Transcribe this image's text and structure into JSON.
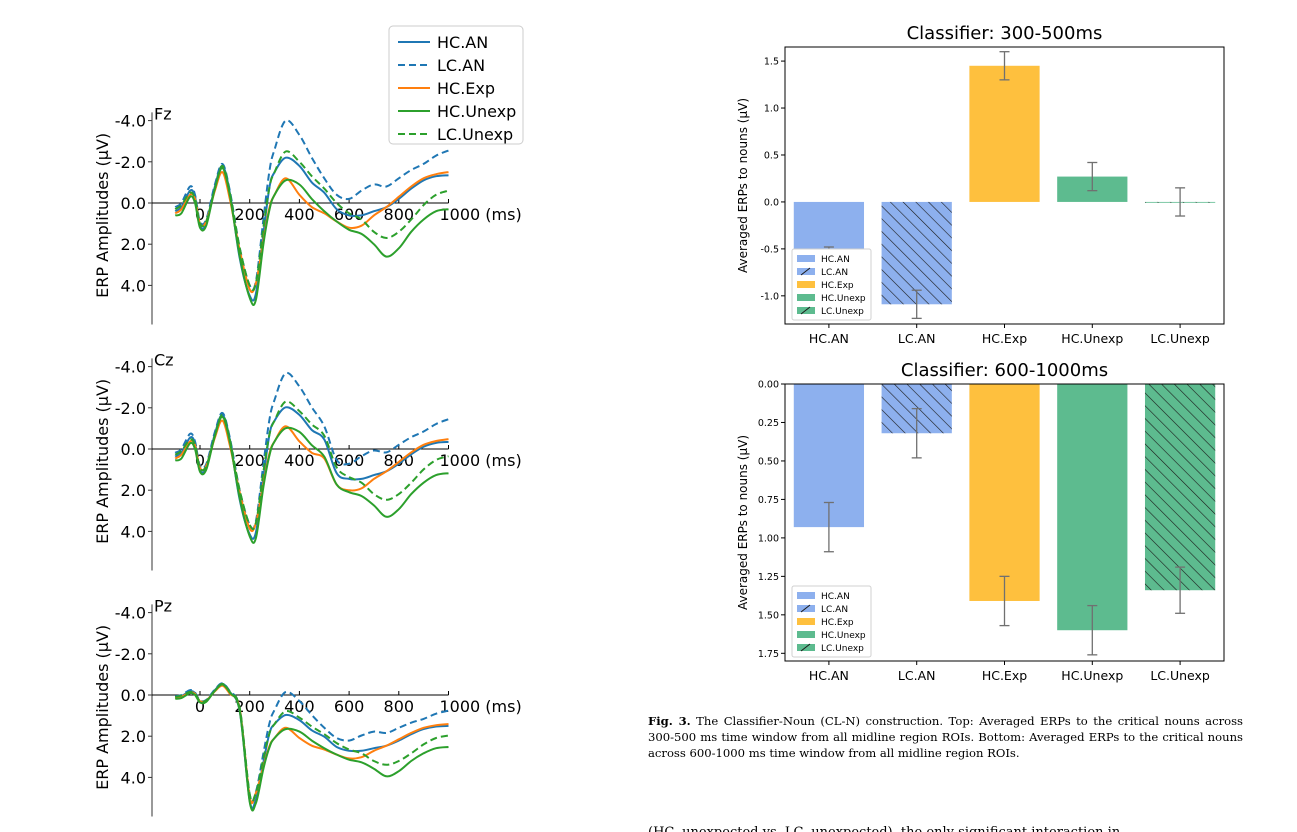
{
  "erp_panels": {
    "legend": [
      {
        "label": "HC.AN",
        "color": "#1f77b4",
        "dash": false
      },
      {
        "label": "LC.AN",
        "color": "#1f77b4",
        "dash": true
      },
      {
        "label": "HC.Exp",
        "color": "#ff7f0e",
        "dash": false
      },
      {
        "label": "HC.Unexp",
        "color": "#2ca02c",
        "dash": false
      },
      {
        "label": "LC.Unexp",
        "color": "#2ca02c",
        "dash": true
      }
    ],
    "ylabel": "ERP Amplitudes (μV)",
    "yticks": [
      "-4.0",
      "-2.0",
      "0.0",
      "2.0",
      "4.0"
    ],
    "xticks": [
      "0",
      "200",
      "400",
      "600",
      "800"
    ],
    "x_last": "1000 (ms)",
    "panels": [
      "Fz",
      "Cz",
      "Pz"
    ]
  },
  "chart_data": [
    {
      "type": "bar",
      "title": "Classifier: 300-500ms",
      "ylabel": "Averaged ERPs to nouns (μV)",
      "categories": [
        "HC.AN",
        "LC.AN",
        "HC.Exp",
        "HC.Unexp",
        "LC.Unexp"
      ],
      "values": [
        -0.63,
        -1.09,
        1.45,
        0.27,
        0.0
      ],
      "errors": [
        0.15,
        0.15,
        0.15,
        0.15,
        0.15
      ],
      "ylim": [
        1.65,
        -1.3
      ],
      "yticks": [
        -1.0,
        -0.5,
        0.0,
        0.5,
        1.0,
        1.5
      ],
      "ytick_labels": [
        "-1.0",
        "-0.5",
        "0.0",
        "0.5",
        "1.0",
        "1.5"
      ],
      "colors": [
        "#8db0ee",
        "#8db0ee",
        "#fec03e",
        "#5dbb8f",
        "#5dbb8f"
      ],
      "hatched": [
        false,
        true,
        false,
        false,
        true
      ],
      "legend": [
        "HC.AN",
        "LC.AN",
        "HC.Exp",
        "HC.Unexp",
        "LC.Unexp"
      ],
      "legend_position": "lower-left"
    },
    {
      "type": "bar",
      "title": "Classifier: 600-1000ms",
      "ylabel": "Averaged ERPs to nouns (μV)",
      "categories": [
        "HC.AN",
        "LC.AN",
        "HC.Exp",
        "HC.Unexp",
        "LC.Unexp"
      ],
      "values": [
        0.93,
        0.32,
        1.41,
        1.6,
        1.34
      ],
      "errors": [
        0.16,
        0.16,
        0.16,
        0.16,
        0.15
      ],
      "ylim": [
        0.0,
        1.8
      ],
      "yticks": [
        0.0,
        0.25,
        0.5,
        0.75,
        1.0,
        1.25,
        1.5,
        1.75
      ],
      "ytick_labels": [
        "0.00",
        "0.25",
        "0.50",
        "0.75",
        "1.00",
        "1.25",
        "1.50",
        "1.75"
      ],
      "colors": [
        "#8db0ee",
        "#8db0ee",
        "#fec03e",
        "#5dbb8f",
        "#5dbb8f"
      ],
      "hatched": [
        false,
        true,
        false,
        false,
        true
      ],
      "legend": [
        "HC.AN",
        "LC.AN",
        "HC.Exp",
        "HC.Unexp",
        "LC.Unexp"
      ],
      "legend_position": "lower-left"
    }
  ],
  "caption": {
    "label": "Fig. 3.",
    "text": " The Classifier-Noun (CL-N) construction. Top: Averaged ERPs to the critical nouns across 300-500 ms time window from all midline region ROIs. Bottom: Averaged ERPs to the critical nouns across 600-1000 ms time window from all midline region ROIs."
  },
  "footer_text": "(HC, unexpected vs. LC, unexpected), the only significant interaction in"
}
